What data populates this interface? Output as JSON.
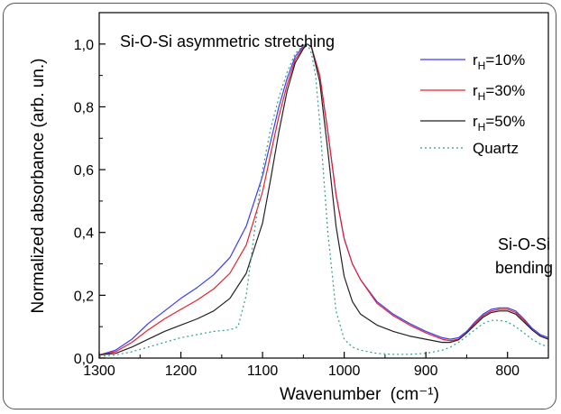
{
  "chart_data": {
    "type": "line",
    "title": "",
    "xlabel": "Wavenumber",
    "xlabel_unit": "(cm⁻¹)",
    "ylabel": "Normalized absorbance (arb. un.)",
    "xlim": [
      1300,
      750
    ],
    "x_axis_reversed": true,
    "ylim": [
      0,
      1.1
    ],
    "x_ticks": [
      "1300",
      "1200",
      "1100",
      "1000",
      "900",
      "800"
    ],
    "y_ticks": [
      "0,0",
      "0,2",
      "0,4",
      "0,6",
      "0,8",
      "1,0"
    ],
    "grid": false,
    "legend_position": "top-right",
    "annotations": [
      {
        "id": "asym",
        "text": "Si-O-Si asymmetric stretching"
      },
      {
        "id": "bend1",
        "text": "Si-O-Si"
      },
      {
        "id": "bend2",
        "text": "bending"
      }
    ],
    "series": [
      {
        "name": "rH=10%",
        "legend_main": "r",
        "legend_sub": "H",
        "legend_tail": "=10%",
        "color": "#3a3aff",
        "dash": "",
        "x": [
          1300,
          1280,
          1260,
          1240,
          1220,
          1200,
          1180,
          1160,
          1140,
          1120,
          1100,
          1090,
          1080,
          1070,
          1060,
          1050,
          1045,
          1040,
          1030,
          1020,
          1010,
          1000,
          990,
          980,
          960,
          940,
          920,
          900,
          880,
          870,
          860,
          850,
          840,
          830,
          820,
          810,
          800,
          790,
          780,
          770,
          760,
          750
        ],
        "y": [
          0.01,
          0.025,
          0.06,
          0.11,
          0.15,
          0.19,
          0.225,
          0.265,
          0.32,
          0.42,
          0.58,
          0.69,
          0.8,
          0.89,
          0.96,
          0.995,
          1.0,
          0.99,
          0.9,
          0.72,
          0.52,
          0.38,
          0.3,
          0.25,
          0.18,
          0.14,
          0.11,
          0.085,
          0.065,
          0.06,
          0.065,
          0.085,
          0.115,
          0.14,
          0.155,
          0.16,
          0.16,
          0.15,
          0.125,
          0.095,
          0.075,
          0.065
        ]
      },
      {
        "name": "rH=30%",
        "legend_main": "r",
        "legend_sub": "H",
        "legend_tail": "=30%",
        "color": "#e8202a",
        "dash": "",
        "x": [
          1300,
          1280,
          1260,
          1240,
          1220,
          1200,
          1180,
          1160,
          1140,
          1120,
          1100,
          1090,
          1080,
          1070,
          1060,
          1050,
          1045,
          1040,
          1030,
          1020,
          1010,
          1000,
          990,
          980,
          960,
          940,
          920,
          900,
          880,
          870,
          860,
          850,
          840,
          830,
          820,
          810,
          800,
          790,
          780,
          770,
          760,
          750
        ],
        "y": [
          0.01,
          0.02,
          0.05,
          0.09,
          0.125,
          0.155,
          0.185,
          0.22,
          0.27,
          0.36,
          0.53,
          0.65,
          0.77,
          0.87,
          0.95,
          0.99,
          1.0,
          0.99,
          0.9,
          0.72,
          0.52,
          0.38,
          0.3,
          0.25,
          0.175,
          0.135,
          0.105,
          0.08,
          0.06,
          0.055,
          0.06,
          0.08,
          0.11,
          0.135,
          0.15,
          0.155,
          0.155,
          0.145,
          0.12,
          0.09,
          0.07,
          0.06
        ]
      },
      {
        "name": "rH=50%",
        "legend_main": "r",
        "legend_sub": "H",
        "legend_tail": "=50%",
        "color": "#222222",
        "dash": "",
        "x": [
          1300,
          1280,
          1260,
          1240,
          1220,
          1200,
          1180,
          1160,
          1140,
          1120,
          1100,
          1090,
          1080,
          1070,
          1060,
          1050,
          1045,
          1040,
          1030,
          1020,
          1010,
          1000,
          990,
          980,
          960,
          940,
          920,
          900,
          880,
          870,
          860,
          850,
          840,
          830,
          820,
          810,
          800,
          790,
          780,
          770,
          760,
          750
        ],
        "y": [
          0.01,
          0.015,
          0.035,
          0.06,
          0.085,
          0.105,
          0.125,
          0.15,
          0.19,
          0.27,
          0.43,
          0.57,
          0.72,
          0.85,
          0.94,
          0.985,
          1.0,
          0.99,
          0.88,
          0.66,
          0.42,
          0.26,
          0.18,
          0.14,
          0.105,
          0.085,
          0.07,
          0.06,
          0.05,
          0.05,
          0.058,
          0.08,
          0.105,
          0.13,
          0.145,
          0.15,
          0.15,
          0.14,
          0.115,
          0.09,
          0.07,
          0.06
        ]
      },
      {
        "name": "Quartz",
        "legend_main": "Quartz",
        "legend_sub": "",
        "legend_tail": "",
        "color": "#2e9e8a",
        "dash": "2,3",
        "x": [
          1300,
          1280,
          1260,
          1240,
          1220,
          1200,
          1180,
          1160,
          1140,
          1130,
          1120,
          1110,
          1100,
          1090,
          1080,
          1070,
          1060,
          1050,
          1045,
          1040,
          1035,
          1030,
          1020,
          1010,
          1000,
          990,
          980,
          960,
          940,
          920,
          900,
          880,
          870,
          860,
          850,
          840,
          830,
          820,
          810,
          800,
          790,
          780,
          770,
          760,
          750
        ],
        "y": [
          0.005,
          0.01,
          0.02,
          0.035,
          0.05,
          0.065,
          0.075,
          0.085,
          0.09,
          0.1,
          0.2,
          0.4,
          0.6,
          0.73,
          0.83,
          0.91,
          0.97,
          0.995,
          1.0,
          0.97,
          0.9,
          0.75,
          0.4,
          0.15,
          0.06,
          0.035,
          0.025,
          0.015,
          0.012,
          0.012,
          0.015,
          0.025,
          0.035,
          0.05,
          0.07,
          0.09,
          0.11,
          0.12,
          0.12,
          0.115,
          0.1,
          0.08,
          0.06,
          0.045,
          0.035
        ]
      }
    ]
  }
}
